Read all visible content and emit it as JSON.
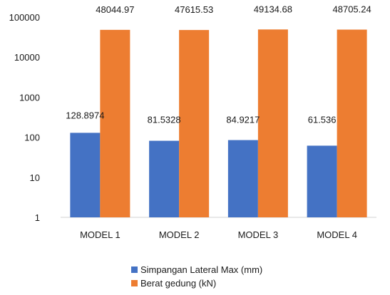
{
  "chart_data": {
    "type": "bar",
    "yscale": "log",
    "ylim": [
      1,
      100000
    ],
    "yticks": [
      "1",
      "10",
      "100",
      "1000",
      "10000",
      "100000"
    ],
    "categories": [
      "MODEL 1",
      "MODEL 2",
      "MODEL 3",
      "MODEL 4"
    ],
    "grid": false,
    "legend_position": "bottom",
    "series": [
      {
        "name": "Simpangan Lateral Max (mm)",
        "color": "#4472C4",
        "values": [
          128.8974,
          81.5328,
          84.9217,
          61.536
        ],
        "labels": [
          "128.8974",
          "81.5328",
          "84.9217",
          "61.536"
        ]
      },
      {
        "name": "Berat gedung (kN)",
        "color": "#ED7D31",
        "values": [
          48044.97,
          47615.53,
          49134.68,
          48705.24
        ],
        "labels": [
          "48044.97",
          "47615.53",
          "49134.68",
          "48705.24"
        ]
      }
    ]
  }
}
